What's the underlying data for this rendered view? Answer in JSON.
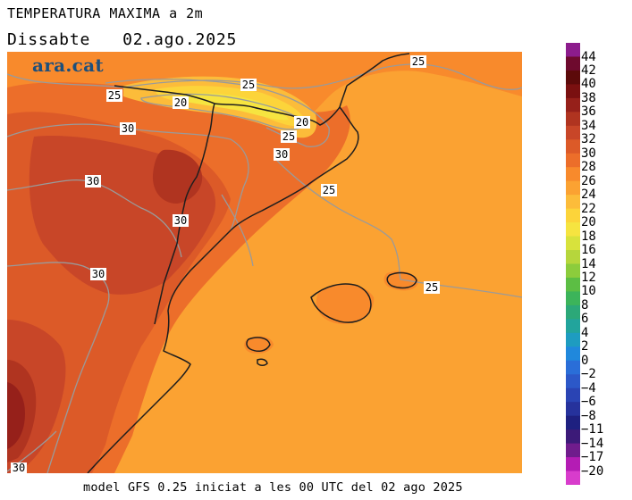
{
  "header": {
    "title": "TEMPERATURA MAXIMA a 2m",
    "day": "Dissabte",
    "date": "02.ago.2025"
  },
  "logo": {
    "text": "ara.cat",
    "color": "#1c4f7c"
  },
  "footer": {
    "text": "model GFS 0.25 iniciat a les 00 UTC del 02 ago 2025"
  },
  "colorbar": {
    "levels": [
      {
        "label": "44",
        "color": "#8c1c8c"
      },
      {
        "label": "42",
        "color": "#6e0a2e"
      },
      {
        "label": "40",
        "color": "#5c0a0a"
      },
      {
        "label": "38",
        "color": "#7a1010"
      },
      {
        "label": "36",
        "color": "#96201a"
      },
      {
        "label": "34",
        "color": "#b03420"
      },
      {
        "label": "32",
        "color": "#c84628"
      },
      {
        "label": "30",
        "color": "#dc5a28"
      },
      {
        "label": "28",
        "color": "#ec6e2a"
      },
      {
        "label": "26",
        "color": "#f88a2c"
      },
      {
        "label": "24",
        "color": "#fba232"
      },
      {
        "label": "22",
        "color": "#fcbc3a"
      },
      {
        "label": "20",
        "color": "#fcd43a"
      },
      {
        "label": "18",
        "color": "#f6e440"
      },
      {
        "label": "16",
        "color": "#d8e23c"
      },
      {
        "label": "14",
        "color": "#b6d63c"
      },
      {
        "label": "12",
        "color": "#8ccc3c"
      },
      {
        "label": "10",
        "color": "#5cbe44"
      },
      {
        "label": "8",
        "color": "#3cb45a"
      },
      {
        "label": "6",
        "color": "#2ca878"
      },
      {
        "label": "4",
        "color": "#22a49c"
      },
      {
        "label": "2",
        "color": "#1e9cc0"
      },
      {
        "label": "0",
        "color": "#2088dc"
      },
      {
        "label": "−2",
        "color": "#2a6ed8"
      },
      {
        "label": "−4",
        "color": "#2c58c8"
      },
      {
        "label": "−6",
        "color": "#2a44b4"
      },
      {
        "label": "−8",
        "color": "#26329c"
      },
      {
        "label": "−11",
        "color": "#1e2080"
      },
      {
        "label": "−14",
        "color": "#3c1a78"
      },
      {
        "label": "−17",
        "color": "#701c8c"
      },
      {
        "label": "−20",
        "color": "#b41cb4"
      },
      {
        "label": "",
        "color": "#d83ccc"
      }
    ]
  },
  "map": {
    "colors": {
      "sea": "#fba232",
      "land_warm": "#f88a2c",
      "land_hot": "#ec6e2a",
      "land_very_hot": "#dc5a28",
      "land_extreme": "#c84628",
      "hotspot": "#b03420",
      "hotspot_dark": "#96201a",
      "mountain_cool": "#fcbc3a",
      "mountain_cooler": "#fcd43a",
      "mountain_cold": "#f6e440",
      "contour": "#9a9a9a",
      "coast": "#1e1e1e"
    },
    "contour_labels": [
      "25",
      "25",
      "20",
      "20",
      "25",
      "30",
      "30",
      "30",
      "30",
      "25",
      "30",
      "25"
    ]
  }
}
